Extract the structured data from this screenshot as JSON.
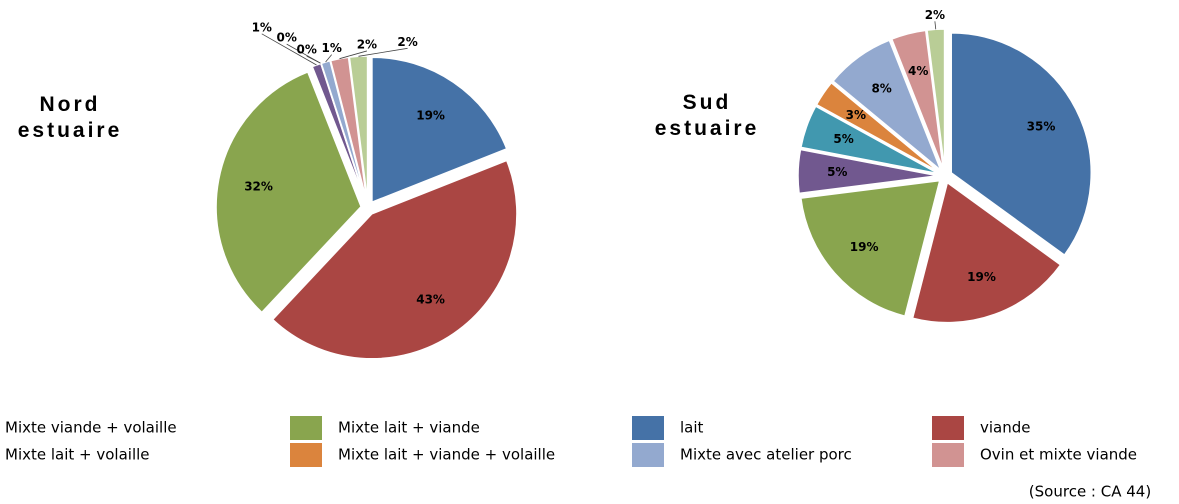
{
  "chart_data": [
    {
      "type": "pie",
      "title": "Nord estuaire",
      "categories": [
        "lait",
        "viande",
        "Mixte lait + viande",
        "Mixte viande + volaille",
        "Mixte lait + volaille",
        "Mixte lait + viande + volaille",
        "Mixte avec atelier porc",
        "Ovin et mixte viande",
        null
      ],
      "values": [
        19,
        43,
        32,
        1,
        0,
        0,
        1,
        2,
        2
      ],
      "value_labels": [
        "19%",
        "43%",
        "32%",
        "1%",
        "0%",
        "0%",
        "1%",
        "2%",
        "2%"
      ],
      "colors": [
        "#4572a7",
        "#aa4643",
        "#89a54e",
        "#71588f",
        "#4198af",
        "#db843d",
        "#93a9cf",
        "#d19392",
        "#b9cd96"
      ]
    },
    {
      "type": "pie",
      "title": "Sud estuaire",
      "categories": [
        "lait",
        "viande",
        "Mixte lait + viande",
        "Mixte viande + volaille",
        "Mixte lait + volaille",
        "Mixte lait + viande + volaille",
        "Mixte avec atelier porc",
        "Ovin et mixte viande",
        null
      ],
      "values": [
        35,
        19,
        19,
        5,
        5,
        3,
        8,
        4,
        2
      ],
      "value_labels": [
        "35%",
        "19%",
        "19%",
        "5%",
        "5%",
        "3%",
        "8%",
        "4%",
        "2%"
      ],
      "colors": [
        "#4572a7",
        "#aa4643",
        "#89a54e",
        "#71588f",
        "#4198af",
        "#db843d",
        "#93a9cf",
        "#d19392",
        "#b9cd96"
      ]
    }
  ],
  "source": "(Source : CA 44)"
}
